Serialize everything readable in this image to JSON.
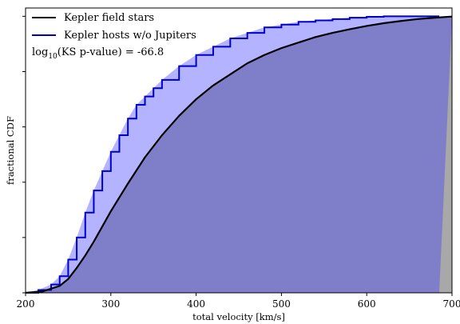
{
  "chart_data": {
    "type": "line",
    "title": "",
    "xlabel": "total velocity [km/s]",
    "ylabel": "fractional CDF",
    "xlim": [
      200,
      700
    ],
    "ylim": [
      0,
      1.03
    ],
    "x_ticks": [
      200,
      300,
      400,
      500,
      600,
      700
    ],
    "y_ticks": [
      0,
      0.2,
      0.4,
      0.6,
      0.8,
      1.0
    ],
    "y_tick_labels_shown": false,
    "grid": false,
    "legend_position": "top-left",
    "annotation": {
      "prefix": "log",
      "subscript": "10",
      "suffix": "(KS p-value) = -66.8"
    },
    "series": [
      {
        "name": "Kepler field stars",
        "color": "#000000",
        "fill_color": "#7f7fc9",
        "x": [
          200,
          220,
          240,
          250,
          260,
          270,
          280,
          290,
          300,
          320,
          340,
          360,
          380,
          400,
          420,
          440,
          460,
          480,
          500,
          520,
          540,
          560,
          580,
          600,
          620,
          640,
          660,
          680,
          700
        ],
        "y": [
          0.0,
          0.005,
          0.025,
          0.05,
          0.09,
          0.135,
          0.185,
          0.24,
          0.295,
          0.395,
          0.49,
          0.57,
          0.64,
          0.7,
          0.75,
          0.79,
          0.83,
          0.86,
          0.885,
          0.905,
          0.925,
          0.94,
          0.953,
          0.965,
          0.975,
          0.983,
          0.99,
          0.995,
          0.999
        ]
      },
      {
        "name": "Kepler hosts w/o Jupiters",
        "color": "#0000cc",
        "fill_color": "#b3b3ff",
        "x": [
          200,
          215,
          230,
          240,
          250,
          260,
          270,
          280,
          290,
          300,
          310,
          320,
          330,
          340,
          350,
          360,
          380,
          400,
          420,
          440,
          460,
          480,
          500,
          520,
          540,
          560,
          580,
          600,
          620,
          640,
          660,
          680,
          685
        ],
        "y": [
          0.0,
          0.01,
          0.03,
          0.06,
          0.12,
          0.2,
          0.29,
          0.37,
          0.44,
          0.51,
          0.57,
          0.63,
          0.68,
          0.71,
          0.74,
          0.77,
          0.82,
          0.86,
          0.89,
          0.92,
          0.94,
          0.96,
          0.97,
          0.98,
          0.985,
          0.99,
          0.995,
          0.998,
          1.0,
          1.0,
          1.0,
          1.0,
          1.0
        ]
      }
    ]
  }
}
